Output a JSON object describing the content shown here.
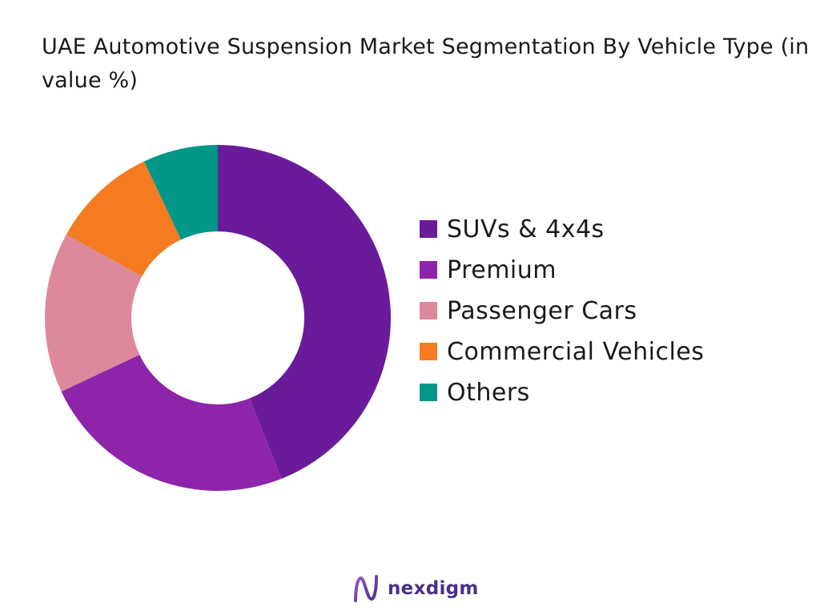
{
  "chart_data": {
    "type": "pie",
    "title": "UAE Automotive Suspension Market Segmentation By Vehicle Type (in value %)",
    "categories": [
      "SUVs & 4x4s",
      "Premium",
      "Passenger Cars",
      "Commercial Vehicles",
      "Others"
    ],
    "values": [
      44,
      24,
      15,
      10,
      7
    ],
    "unit": "%",
    "colors": [
      "#6a1b9a",
      "#8e24aa",
      "#de889e",
      "#f47b20",
      "#009688"
    ],
    "legend_position": "right",
    "donut": true
  },
  "brand": {
    "name": "nexdigm",
    "icon": "nexdigm-logo-icon"
  }
}
